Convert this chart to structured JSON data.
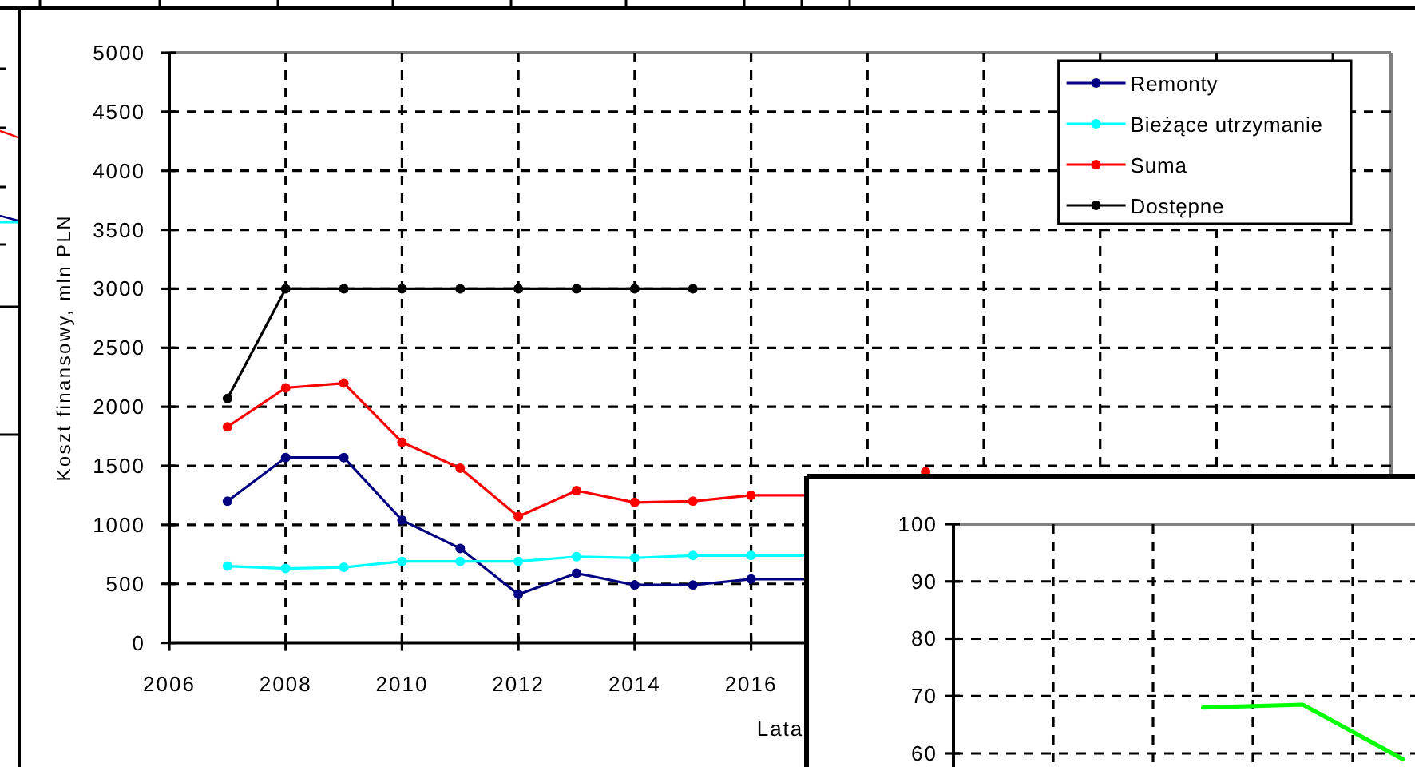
{
  "chart_data": [
    {
      "type": "line",
      "xlabel": "Lata",
      "ylabel": "Koszt finansowy, mln PLN",
      "xlim": [
        2006,
        2027
      ],
      "xticks": [
        2006,
        2008,
        2010,
        2012,
        2014,
        2016,
        {
          "value": 2018,
          "label": null
        },
        {
          "value": 2020,
          "label": null
        },
        {
          "value": 2022,
          "label": null
        },
        {
          "value": 2024,
          "label": null
        },
        {
          "value": 2026,
          "label": null
        }
      ],
      "ylim": [
        0,
        5000
      ],
      "yticks": [
        0,
        500,
        1000,
        1500,
        2000,
        2500,
        3000,
        3500,
        4000,
        4500,
        5000
      ],
      "grid": true,
      "legend": "top right",
      "marker": "circle",
      "line_style": "solid",
      "series": [
        {
          "name": "Remonty",
          "color": "#000080",
          "x": [
            2007,
            2008,
            2009,
            2010,
            2011,
            2012,
            2013,
            2014,
            2015,
            2016,
            2017
          ],
          "values": [
            1200,
            1570,
            1570,
            1040,
            800,
            410,
            590,
            490,
            490,
            540,
            540
          ]
        },
        {
          "name": "Bieżące utrzymanie",
          "color": "#00ffff",
          "x": [
            2007,
            2008,
            2009,
            2010,
            2011,
            2012,
            2013,
            2014,
            2015,
            2016,
            2017
          ],
          "values": [
            650,
            630,
            640,
            690,
            690,
            690,
            730,
            720,
            740,
            740,
            740
          ]
        },
        {
          "name": "Suma",
          "color": "#ff0000",
          "x": [
            2007,
            2008,
            2009,
            2010,
            2011,
            2012,
            2013,
            2014,
            2015,
            2016,
            2017,
            2018,
            2019
          ],
          "values": [
            1830,
            2160,
            2200,
            1700,
            1480,
            1070,
            1290,
            1190,
            1200,
            1250,
            1250,
            null,
            1450
          ]
        },
        {
          "name": "Dostępne",
          "color": "#000000",
          "x": [
            2007,
            2008,
            2009,
            2010,
            2011,
            2012,
            2013,
            2014,
            2015
          ],
          "values": [
            2070,
            3000,
            3000,
            3000,
            3000,
            3000,
            3000,
            3000,
            3000
          ]
        }
      ]
    },
    {
      "type": "line",
      "categories": [
        null,
        null,
        null,
        null,
        null,
        null
      ],
      "ylim": [
        57.6,
        100
      ],
      "yticks": [
        60,
        70,
        80,
        90,
        100
      ],
      "tick_labels": "y",
      "grid": true,
      "marker": "none",
      "line_style": "solid",
      "series": [
        {
          "color": "#00ff00",
          "values": [
            null,
            null,
            68,
            68.5,
            59,
            null
          ]
        }
      ]
    }
  ]
}
